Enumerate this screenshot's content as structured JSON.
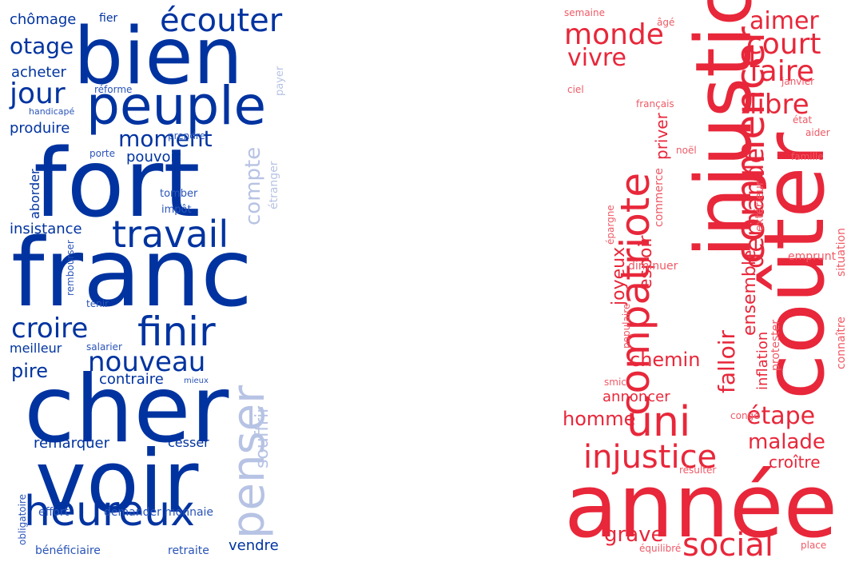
{
  "colors": {
    "blue_strong": "#0033a0",
    "blue_mid": "#2a54b8",
    "blue_light": "#b7c3e4",
    "red_strong": "#e8273a",
    "red_mid": "#ef5a66",
    "red_light": "#f48f98"
  },
  "left_cloud": {
    "words": [
      {
        "text": "bien",
        "tone": "strong"
      },
      {
        "text": "fort",
        "tone": "strong"
      },
      {
        "text": "franc",
        "tone": "strong"
      },
      {
        "text": "cher",
        "tone": "strong"
      },
      {
        "text": "voir",
        "tone": "strong"
      },
      {
        "text": "peuple",
        "tone": "strong"
      },
      {
        "text": "heureux",
        "tone": "strong"
      },
      {
        "text": "travail",
        "tone": "strong"
      },
      {
        "text": "finir",
        "tone": "strong"
      },
      {
        "text": "penser",
        "tone": "light"
      },
      {
        "text": "écouter",
        "tone": "strong"
      },
      {
        "text": "nouveau",
        "tone": "strong"
      },
      {
        "text": "croire",
        "tone": "strong"
      },
      {
        "text": "jour",
        "tone": "strong"
      },
      {
        "text": "otage",
        "tone": "strong"
      },
      {
        "text": "moment",
        "tone": "strong"
      },
      {
        "text": "compte",
        "tone": "light"
      },
      {
        "text": "souffrir",
        "tone": "light"
      },
      {
        "text": "pire",
        "tone": "strong"
      },
      {
        "text": "insistance",
        "tone": "strong"
      },
      {
        "text": "produire",
        "tone": "strong"
      },
      {
        "text": "acheter",
        "tone": "strong"
      },
      {
        "text": "chômage",
        "tone": "strong"
      },
      {
        "text": "contraire",
        "tone": "strong"
      },
      {
        "text": "pouvoir",
        "tone": "strong"
      },
      {
        "text": "meilleur",
        "tone": "strong"
      },
      {
        "text": "remarquer",
        "tone": "strong"
      },
      {
        "text": "cesser",
        "tone": "strong"
      },
      {
        "text": "vendre",
        "tone": "strong"
      },
      {
        "text": "aborder",
        "tone": "strong"
      },
      {
        "text": "étranger",
        "tone": "light"
      },
      {
        "text": "fier",
        "tone": "strong"
      },
      {
        "text": "réforme",
        "tone": "mid"
      },
      {
        "text": "handicapé",
        "tone": "mid"
      },
      {
        "text": "porte",
        "tone": "mid"
      },
      {
        "text": "prendre",
        "tone": "mid"
      },
      {
        "text": "tomber",
        "tone": "mid"
      },
      {
        "text": "impôt",
        "tone": "mid"
      },
      {
        "text": "rembourser",
        "tone": "mid"
      },
      {
        "text": "tenir",
        "tone": "mid"
      },
      {
        "text": "salarier",
        "tone": "mid"
      },
      {
        "text": "mieux",
        "tone": "mid"
      },
      {
        "text": "effort",
        "tone": "mid"
      },
      {
        "text": "demander",
        "tone": "mid"
      },
      {
        "text": "monnaie",
        "tone": "mid"
      },
      {
        "text": "obligatoire",
        "tone": "mid"
      },
      {
        "text": "bénéficiaire",
        "tone": "mid"
      },
      {
        "text": "retraite",
        "tone": "mid"
      },
      {
        "text": "payer",
        "tone": "light"
      }
    ]
  },
  "right_cloud": {
    "words": [
      {
        "text": "année",
        "tone": "strong"
      },
      {
        "text": "injustic",
        "tone": "strong"
      },
      {
        "text": "coûter",
        "tone": "strong"
      },
      {
        "text": "compatriote",
        "tone": "strong"
      },
      {
        "text": "uni",
        "tone": "strong"
      },
      {
        "text": "commencer",
        "tone": "strong"
      },
      {
        "text": "injustice",
        "tone": "strong"
      },
      {
        "text": "social",
        "tone": "strong"
      },
      {
        "text": "monde",
        "tone": "strong"
      },
      {
        "text": "court",
        "tone": "strong"
      },
      {
        "text": "faire",
        "tone": "strong"
      },
      {
        "text": "libre",
        "tone": "strong"
      },
      {
        "text": "demande",
        "tone": "strong"
      },
      {
        "text": "aimer",
        "tone": "strong"
      },
      {
        "text": "vivre",
        "tone": "strong"
      },
      {
        "text": "étape",
        "tone": "strong"
      },
      {
        "text": "malade",
        "tone": "strong"
      },
      {
        "text": "homme",
        "tone": "strong"
      },
      {
        "text": "grave",
        "tone": "strong"
      },
      {
        "text": "chemin",
        "tone": "strong"
      },
      {
        "text": "falloir",
        "tone": "strong"
      },
      {
        "text": "ensemble",
        "tone": "strong"
      },
      {
        "text": "espoir",
        "tone": "strong"
      },
      {
        "text": "joyeux",
        "tone": "strong"
      },
      {
        "text": "priver",
        "tone": "strong"
      },
      {
        "text": "croître",
        "tone": "strong"
      },
      {
        "text": "annoncer",
        "tone": "strong"
      },
      {
        "text": "inflation",
        "tone": "strong"
      },
      {
        "text": "commerce",
        "tone": "mid"
      },
      {
        "text": "situation",
        "tone": "mid"
      },
      {
        "text": "extérieur",
        "tone": "mid"
      },
      {
        "text": "connaître",
        "tone": "mid"
      },
      {
        "text": "protester",
        "tone": "mid"
      },
      {
        "text": "emprunt",
        "tone": "mid"
      },
      {
        "text": "diminuer",
        "tone": "mid"
      },
      {
        "text": "populaire",
        "tone": "mid"
      },
      {
        "text": "épargne",
        "tone": "mid"
      },
      {
        "text": "noël",
        "tone": "mid"
      },
      {
        "text": "français",
        "tone": "mid"
      },
      {
        "text": "famille",
        "tone": "mid"
      },
      {
        "text": "aider",
        "tone": "mid"
      },
      {
        "text": "état",
        "tone": "mid"
      },
      {
        "text": "janvier",
        "tone": "mid"
      },
      {
        "text": "ciel",
        "tone": "mid"
      },
      {
        "text": "âgé",
        "tone": "mid"
      },
      {
        "text": "semaine",
        "tone": "mid"
      },
      {
        "text": "smic",
        "tone": "mid"
      },
      {
        "text": "congé",
        "tone": "mid"
      },
      {
        "text": "résulter",
        "tone": "mid"
      },
      {
        "text": "équilibré",
        "tone": "mid"
      },
      {
        "text": "place",
        "tone": "mid"
      }
    ]
  }
}
